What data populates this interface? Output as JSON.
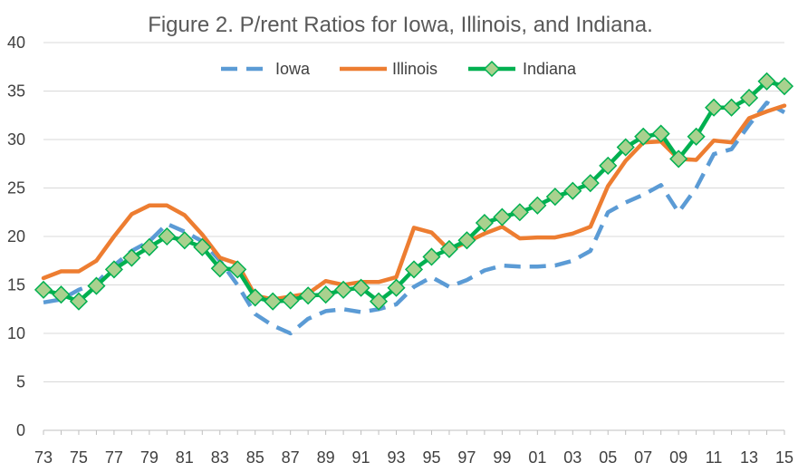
{
  "chart_data": {
    "type": "line",
    "title": "Figure 2.  P/rent Ratios for Iowa, Illinois, and Indiana.",
    "xlabel": "",
    "ylabel": "",
    "ylim": [
      0,
      40
    ],
    "yticks": [
      "0",
      "5",
      "10",
      "15",
      "20",
      "25",
      "30",
      "35",
      "40"
    ],
    "x": [
      1973,
      1974,
      1975,
      1976,
      1977,
      1978,
      1979,
      1980,
      1981,
      1982,
      1983,
      1984,
      1985,
      1986,
      1987,
      1988,
      1989,
      1990,
      1991,
      1992,
      1993,
      1994,
      1995,
      1996,
      1997,
      1998,
      1999,
      2000,
      2001,
      2002,
      2003,
      2004,
      2005,
      2006,
      2007,
      2008,
      2009,
      2010,
      2011,
      2012,
      2013,
      2014,
      2015
    ],
    "xtick_labels": [
      "73",
      "75",
      "77",
      "79",
      "81",
      "83",
      "85",
      "87",
      "89",
      "91",
      "93",
      "95",
      "97",
      "99",
      "01",
      "03",
      "05",
      "07",
      "09",
      "11",
      "13",
      "15"
    ],
    "legend_position": "top-center",
    "grid": true,
    "series": [
      {
        "name": "Iowa",
        "color": "#5B9BD5",
        "style": "dashed",
        "values": [
          13.2,
          13.5,
          14.5,
          15.2,
          17.0,
          18.5,
          19.5,
          21.3,
          20.5,
          19.5,
          17.5,
          15.0,
          12.0,
          10.8,
          10.0,
          11.5,
          12.3,
          12.5,
          12.2,
          12.5,
          13.0,
          14.8,
          15.8,
          14.8,
          15.5,
          16.5,
          17.0,
          16.9,
          16.9,
          17.0,
          17.5,
          18.5,
          22.5,
          23.5,
          24.3,
          25.3,
          22.5,
          25.0,
          28.5,
          29.0,
          31.5,
          33.8,
          32.8
        ]
      },
      {
        "name": "Illinois",
        "color": "#ED7D31",
        "style": "solid",
        "values": [
          15.7,
          16.4,
          16.4,
          17.5,
          20.0,
          22.3,
          23.2,
          23.2,
          22.2,
          20.2,
          17.8,
          17.2,
          13.9,
          13.5,
          13.8,
          14.1,
          15.4,
          15.0,
          15.3,
          15.3,
          15.8,
          20.9,
          20.4,
          18.6,
          19.4,
          20.3,
          21.0,
          19.8,
          19.9,
          19.9,
          20.3,
          21.0,
          25.2,
          27.8,
          29.7,
          29.8,
          28.0,
          27.9,
          29.9,
          29.7,
          32.2,
          32.9,
          33.5
        ]
      },
      {
        "name": "Indiana",
        "color": "#00B050",
        "style": "solid-diamond",
        "marker_fill": "#A9D18E",
        "values": [
          14.5,
          14.0,
          13.3,
          14.9,
          16.6,
          17.8,
          18.9,
          20.0,
          19.6,
          18.9,
          16.7,
          16.6,
          13.7,
          13.3,
          13.4,
          13.9,
          14.0,
          14.5,
          14.7,
          13.3,
          14.7,
          16.6,
          17.9,
          18.7,
          19.6,
          21.4,
          22.0,
          22.5,
          23.2,
          24.1,
          24.7,
          25.5,
          27.3,
          29.2,
          30.3,
          30.6,
          28.0,
          30.3,
          33.3,
          33.3,
          34.3,
          36.0,
          35.5
        ]
      }
    ]
  }
}
